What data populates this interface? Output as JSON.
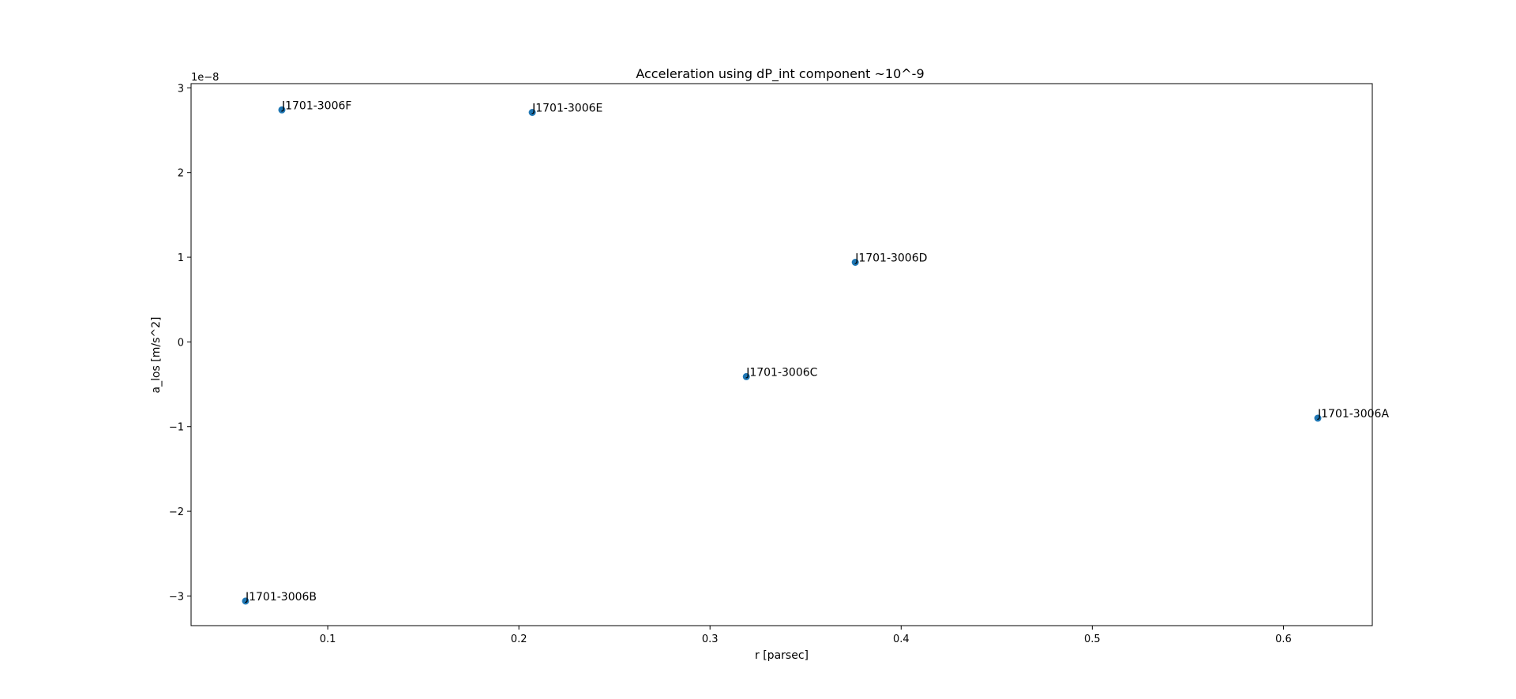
{
  "chart_data": {
    "type": "scatter",
    "title": "Acceleration using dP_int component ~10^-9",
    "xlabel": "r [parsec]",
    "ylabel": "a_los [m/s^2]",
    "y_offset_label": "1e−8",
    "xlim": [
      0.0285,
      0.6465
    ],
    "ylim": [
      -3.35e-08,
      3.05e-08
    ],
    "x_ticks": [
      0.1,
      0.2,
      0.3,
      0.4,
      0.5,
      0.6
    ],
    "x_tick_labels": [
      "0.1",
      "0.2",
      "0.3",
      "0.4",
      "0.5",
      "0.6"
    ],
    "y_ticks": [
      -3e-08,
      -2e-08,
      -1e-08,
      0,
      1e-08,
      2e-08,
      3e-08
    ],
    "y_tick_labels": [
      "−3",
      "−2",
      "−1",
      "0",
      "1",
      "2",
      "3"
    ],
    "grid": false,
    "marker_color": "#1f77b4",
    "series": [
      {
        "points": [
          {
            "label": "J1701-3006F",
            "x": 0.076,
            "y": 2.74e-08
          },
          {
            "label": "J1701-3006E",
            "x": 0.207,
            "y": 2.71e-08
          },
          {
            "label": "J1701-3006D",
            "x": 0.376,
            "y": 9.4e-09
          },
          {
            "label": "J1701-3006C",
            "x": 0.319,
            "y": -4.1e-09
          },
          {
            "label": "J1701-3006A",
            "x": 0.618,
            "y": -9e-09
          },
          {
            "label": "J1701-3006B",
            "x": 0.057,
            "y": -3.06e-08
          }
        ]
      }
    ]
  }
}
